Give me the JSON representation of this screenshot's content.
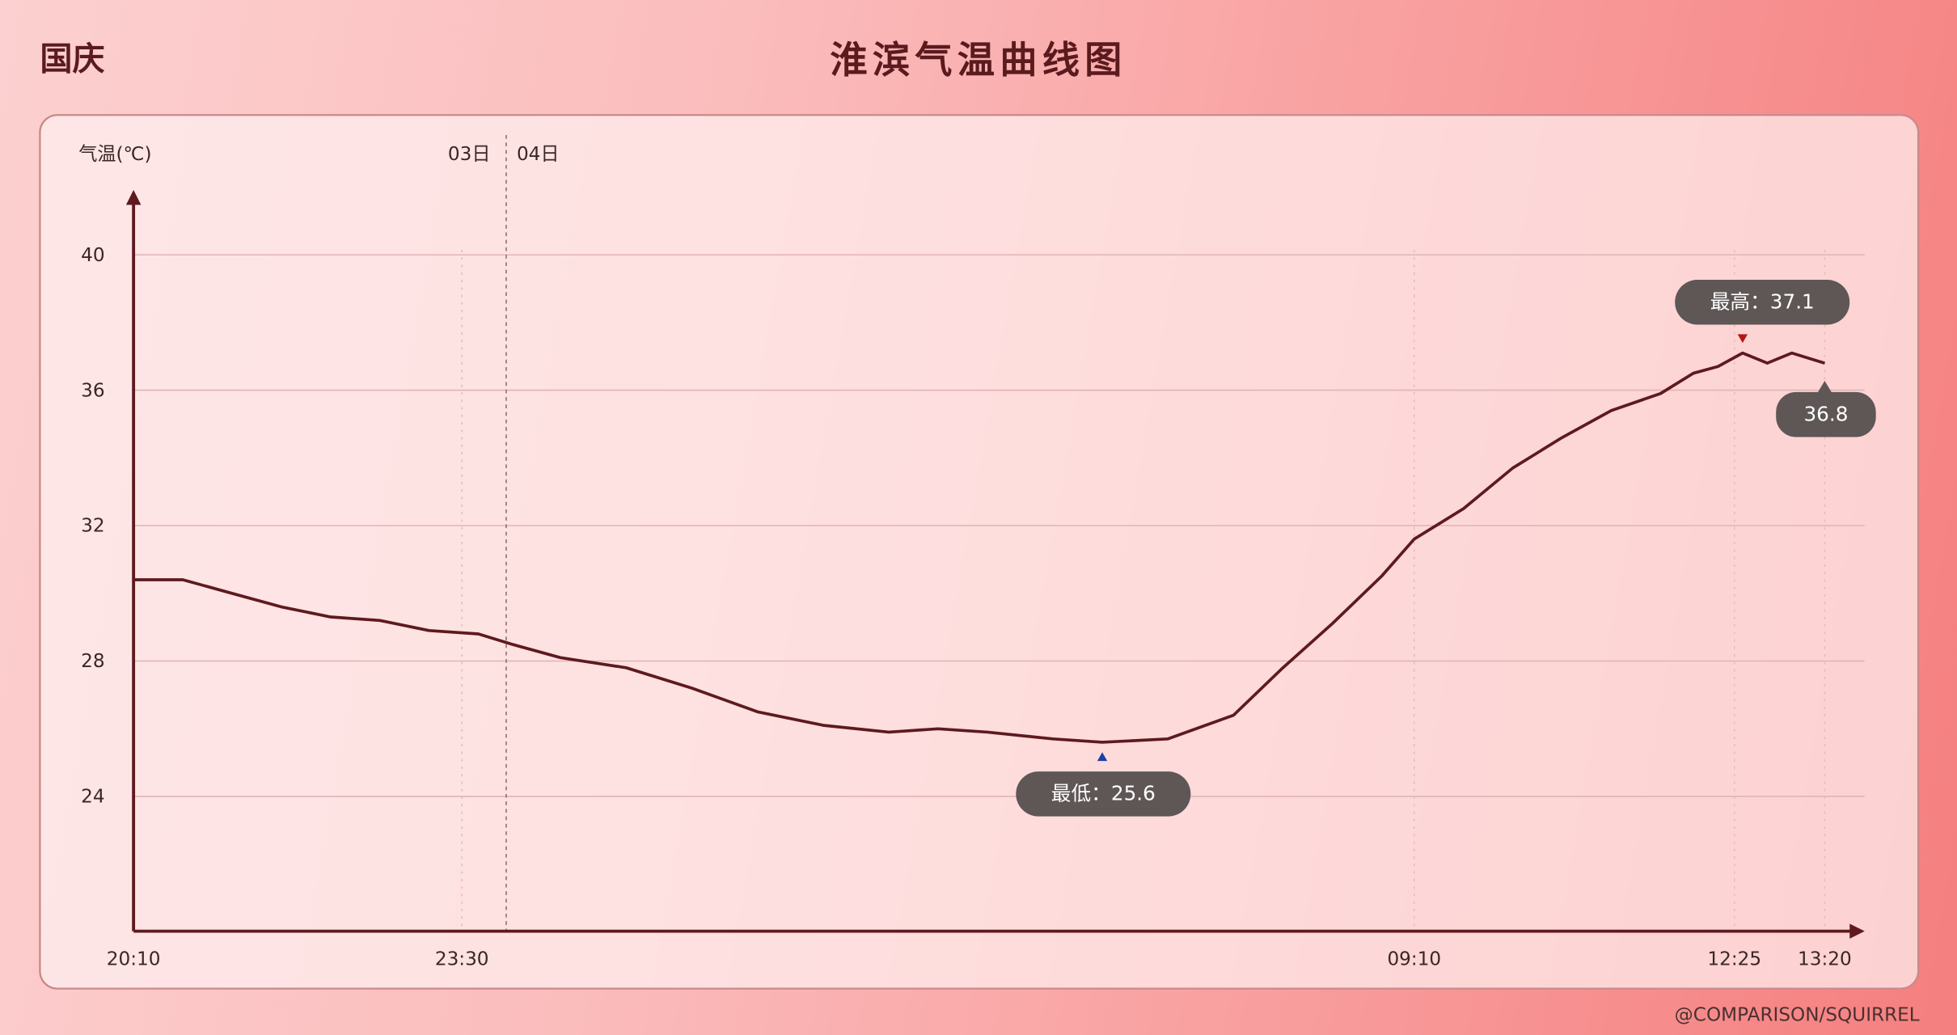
{
  "header": {
    "left_label": "国庆",
    "title": "淮滨气温曲线图"
  },
  "watermark": "@COMPARISON/SQUIRREL",
  "colors": {
    "line": "#5e1a1e",
    "axis": "#5e1a1e",
    "tooltip_bg": "#5f5656",
    "min_marker": "#1f3fa8",
    "max_marker": "#b01818"
  },
  "chart_data": {
    "type": "line",
    "ylabel": "气温(℃)",
    "ylim": [
      20,
      42
    ],
    "yticks": [
      "24",
      "28",
      "32",
      "36",
      "40"
    ],
    "xticks": [
      "20:10",
      "23:30",
      "09:10",
      "12:25",
      "13:20"
    ],
    "day_labels": [
      "03日",
      "04日"
    ],
    "grid": "horizontal",
    "series": [
      {
        "x": [
          "20:10",
          "20:40",
          "21:10",
          "21:40",
          "22:10",
          "22:40",
          "23:10",
          "23:40",
          "00:00",
          "00:30",
          "01:10",
          "01:50",
          "02:30",
          "03:10",
          "03:50",
          "04:20",
          "04:50",
          "05:30",
          "06:00",
          "06:40",
          "07:20",
          "07:50",
          "08:20",
          "08:50",
          "09:10",
          "09:40",
          "10:10",
          "10:40",
          "11:10",
          "11:40",
          "12:00",
          "12:15",
          "12:30",
          "12:45",
          "13:00",
          "13:20"
        ],
        "values": [
          30.4,
          30.4,
          30.0,
          29.6,
          29.3,
          29.2,
          28.9,
          28.8,
          28.5,
          28.1,
          27.8,
          27.2,
          26.5,
          26.1,
          25.9,
          26.0,
          25.9,
          25.7,
          25.6,
          25.7,
          26.4,
          27.8,
          29.1,
          30.5,
          31.6,
          32.5,
          33.7,
          34.6,
          35.4,
          35.9,
          36.5,
          36.7,
          37.1,
          36.8,
          37.1,
          36.8
        ]
      }
    ],
    "annotations": {
      "min": {
        "label": "最低：25.6",
        "time": "06:00",
        "value": 25.6
      },
      "max": {
        "label": "最高：37.1",
        "time": "12:30",
        "value": 37.1
      },
      "last": {
        "label": "36.8",
        "time": "13:20",
        "value": 36.8
      }
    }
  }
}
